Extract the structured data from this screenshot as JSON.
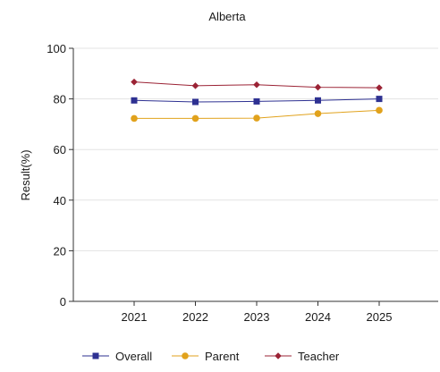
{
  "chart_data": {
    "type": "line",
    "title": "Alberta",
    "xlabel": "",
    "ylabel": "Result(%)",
    "categories": [
      "2021",
      "2022",
      "2023",
      "2024",
      "2025"
    ],
    "ylim": [
      0,
      100
    ],
    "yticks": [
      0,
      20,
      40,
      60,
      80,
      100
    ],
    "grid": true,
    "legend_position": "bottom",
    "series": [
      {
        "name": "Overall",
        "color": "#2e3192",
        "marker": "square",
        "values": [
          79.4,
          78.8,
          79.0,
          79.4,
          80.0
        ]
      },
      {
        "name": "Parent",
        "color": "#e1a21c",
        "marker": "circle",
        "values": [
          72.3,
          72.3,
          72.4,
          74.2,
          75.5
        ]
      },
      {
        "name": "Teacher",
        "color": "#9b2335",
        "marker": "diamond",
        "values": [
          86.7,
          85.2,
          85.6,
          84.6,
          84.4
        ]
      }
    ]
  }
}
